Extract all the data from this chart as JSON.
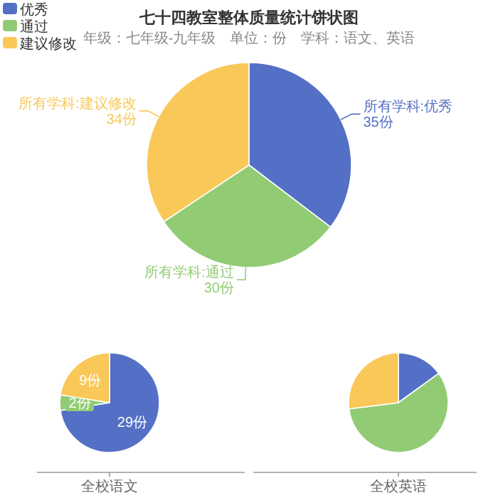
{
  "chart_data": [
    {
      "type": "pie",
      "title": "七十四教室整体质量统计饼状图",
      "subtitle": "年级：七年级-九年级　单位：份　学科：语文、英语",
      "categories": [
        "优秀",
        "通过",
        "建议修改"
      ],
      "values": [
        35,
        30,
        34
      ],
      "colors": [
        "#5470c6",
        "#91cc75",
        "#fac858"
      ],
      "legend": "top left",
      "value_labels": [
        "所有学科:优秀 35份",
        "所有学科:通过 30份",
        "所有学科:建议修改 34份"
      ]
    },
    {
      "type": "pie",
      "xlabel": "全校语文",
      "categories": [
        null,
        null,
        null
      ],
      "values": [
        29,
        2,
        9
      ],
      "colors": [
        "#5470c6",
        "#91cc75",
        "#fac858"
      ],
      "value_labels": [
        "29份",
        "2份",
        "9份"
      ]
    },
    {
      "type": "pie",
      "xlabel": "全校英语",
      "categories": [
        null,
        null,
        null
      ],
      "values": [
        15,
        58,
        27
      ],
      "colors": [
        "#5470c6",
        "#91cc75",
        "#fac858"
      ]
    }
  ]
}
